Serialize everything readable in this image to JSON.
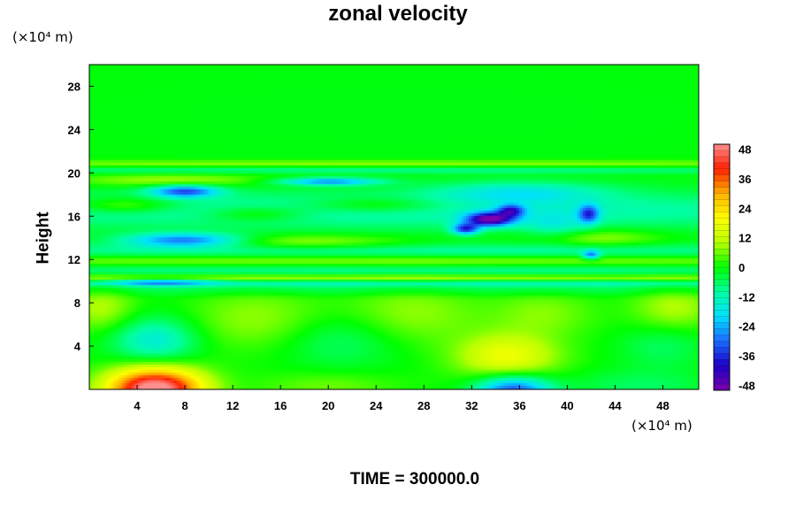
{
  "chart_data": {
    "type": "heatmap",
    "title": "zonal velocity",
    "ylabel": "Height",
    "xlabel": "",
    "y_unit": "(×10⁴ m)",
    "x_unit": "(×10⁴ m)",
    "footer": "TIME = 300000.0",
    "xlim": [
      0,
      51
    ],
    "ylim": [
      0,
      30
    ],
    "x_ticks": [
      4,
      8,
      12,
      16,
      20,
      24,
      28,
      32,
      36,
      40,
      44,
      48
    ],
    "y_ticks": [
      4,
      8,
      12,
      16,
      20,
      24,
      28
    ],
    "colorbar": {
      "range": [
        -50,
        50
      ],
      "ticks": [
        48,
        36,
        24,
        12,
        0,
        -12,
        -24,
        -36,
        -48
      ],
      "colors": {
        "m50": "#7a00aa",
        "m40": "#1a00c8",
        "m30": "#1c6bff",
        "m20": "#00e0ff",
        "m10": "#00ffa0",
        "z0": "#00ff00",
        "p10": "#b8ff00",
        "p20": "#ffff00",
        "p30": "#ffb000",
        "p40": "#ff2000",
        "p50": "#ff9090"
      }
    },
    "background_value": 0,
    "features": [
      {
        "x": 25.5,
        "y": 25.5,
        "sx": 30,
        "sy": 4.5,
        "v": -1
      },
      {
        "x": 25.5,
        "y": 20.8,
        "sx": 40,
        "sy": 0.25,
        "v": 9
      },
      {
        "x": 25.5,
        "y": 20.3,
        "sx": 40,
        "sy": 0.25,
        "v": -9
      },
      {
        "x": 7,
        "y": 19.3,
        "sx": 6,
        "sy": 0.4,
        "v": 10
      },
      {
        "x": 8,
        "y": 18.3,
        "sx": 2,
        "sy": 0.4,
        "v": -30
      },
      {
        "x": 20,
        "y": 19.2,
        "sx": 3,
        "sy": 0.25,
        "v": -26
      },
      {
        "x": 36,
        "y": 18.2,
        "sx": 5,
        "sy": 0.7,
        "v": -14
      },
      {
        "x": 25.5,
        "y": 16.5,
        "sx": 40,
        "sy": 1.3,
        "v": -12
      },
      {
        "x": 3,
        "y": 17.0,
        "sx": 3,
        "sy": 0.5,
        "v": 12
      },
      {
        "x": 14,
        "y": 16.2,
        "sx": 3,
        "sy": 0.5,
        "v": 10
      },
      {
        "x": 24,
        "y": 17.0,
        "sx": 4,
        "sy": 0.5,
        "v": 10
      },
      {
        "x": 33.5,
        "y": 15.7,
        "sx": 1.4,
        "sy": 0.45,
        "v": -44
      },
      {
        "x": 31.5,
        "y": 14.8,
        "sx": 0.8,
        "sy": 0.35,
        "v": -32
      },
      {
        "x": 35.3,
        "y": 16.5,
        "sx": 0.8,
        "sy": 0.4,
        "v": -28
      },
      {
        "x": 41.8,
        "y": 16.2,
        "sx": 0.6,
        "sy": 0.6,
        "v": -26
      },
      {
        "x": 39,
        "y": 15.0,
        "sx": 2,
        "sy": 1,
        "v": -10
      },
      {
        "x": 42,
        "y": 12.4,
        "sx": 0.5,
        "sy": 0.3,
        "v": -24
      },
      {
        "x": 8,
        "y": 13.8,
        "sx": 3.5,
        "sy": 0.45,
        "v": -28
      },
      {
        "x": 18,
        "y": 13.6,
        "sx": 6,
        "sy": 0.5,
        "v": 10
      },
      {
        "x": 42,
        "y": 14.0,
        "sx": 4,
        "sy": 0.6,
        "v": 10
      },
      {
        "x": 25.5,
        "y": 12.8,
        "sx": 40,
        "sy": 0.5,
        "v": -10
      },
      {
        "x": 25.5,
        "y": 11.9,
        "sx": 40,
        "sy": 0.35,
        "v": 8
      },
      {
        "x": 25.5,
        "y": 11.0,
        "sx": 40,
        "sy": 0.35,
        "v": -9
      },
      {
        "x": 25.5,
        "y": 10.3,
        "sx": 40,
        "sy": 0.22,
        "v": 9
      },
      {
        "x": 25.5,
        "y": 9.8,
        "sx": 40,
        "sy": 0.22,
        "v": -13
      },
      {
        "x": 6,
        "y": 9.9,
        "sx": 3,
        "sy": 0.22,
        "v": -18
      },
      {
        "x": 25.5,
        "y": 9.2,
        "sx": 40,
        "sy": 0.4,
        "v": -6
      },
      {
        "x": 1,
        "y": 7.5,
        "sx": 2,
        "sy": 1.5,
        "v": 10
      },
      {
        "x": 14,
        "y": 6.5,
        "sx": 4,
        "sy": 2,
        "v": 8
      },
      {
        "x": 27,
        "y": 7.0,
        "sx": 4,
        "sy": 2,
        "v": 8
      },
      {
        "x": 38,
        "y": 7.0,
        "sx": 3,
        "sy": 1.5,
        "v": 7
      },
      {
        "x": 49,
        "y": 7.5,
        "sx": 2.5,
        "sy": 1.5,
        "v": 10
      },
      {
        "x": 5.5,
        "y": 4.5,
        "sx": 2.5,
        "sy": 1.5,
        "v": -16
      },
      {
        "x": 21,
        "y": 4.5,
        "sx": 3.5,
        "sy": 1.8,
        "v": -7
      },
      {
        "x": 35,
        "y": 3.0,
        "sx": 3,
        "sy": 1.5,
        "v": 18
      },
      {
        "x": 48,
        "y": 4.0,
        "sx": 2.5,
        "sy": 1.5,
        "v": -6
      },
      {
        "x": 5.5,
        "y": 0.0,
        "sx": 2.8,
        "sy": 1.4,
        "v": 55
      },
      {
        "x": 35.5,
        "y": -0.3,
        "sx": 2.2,
        "sy": 1.1,
        "v": -36
      },
      {
        "x": 20,
        "y": 0.2,
        "sx": 4,
        "sy": 1,
        "v": 6
      },
      {
        "x": 46,
        "y": 0.3,
        "sx": 4,
        "sy": 1,
        "v": -6
      }
    ]
  }
}
